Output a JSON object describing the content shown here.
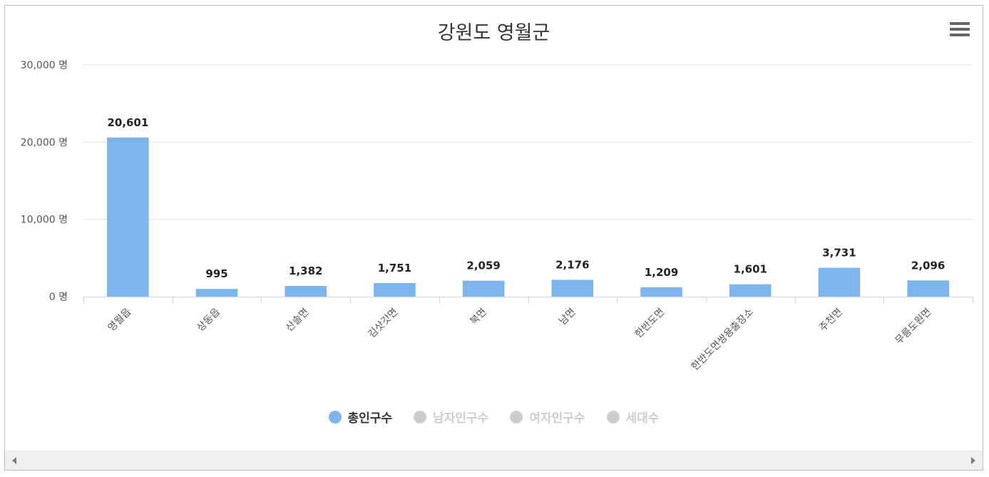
{
  "chart_data": {
    "type": "bar",
    "title": "강원도 영월군",
    "categories": [
      "영월읍",
      "상동읍",
      "산솔면",
      "김삿갓면",
      "북면",
      "남면",
      "한반도면",
      "한반도면쌍용출장소",
      "주천면",
      "무릉도원면"
    ],
    "series": [
      {
        "name": "총인구수",
        "values": [
          20601,
          995,
          1382,
          1751,
          2059,
          2176,
          1209,
          1601,
          3731,
          2096
        ],
        "color": "#7cb5ec",
        "visible": true
      }
    ],
    "value_labels": [
      "20,601",
      "995",
      "1,382",
      "1,751",
      "2,059",
      "2,176",
      "1,209",
      "1,601",
      "3,731",
      "2,096"
    ],
    "ylim": [
      0,
      30000
    ],
    "yticks": [
      {
        "value": 0,
        "label": "0 명"
      },
      {
        "value": 10000,
        "label": "10,000 명"
      },
      {
        "value": 20000,
        "label": "20,000 명"
      },
      {
        "value": 30000,
        "label": "30,000 명"
      }
    ],
    "grid": true,
    "legend_position": "bottom-center"
  },
  "legend": {
    "items": [
      {
        "label": "총인구수",
        "color": "#7cb5ec",
        "active": true
      },
      {
        "label": "남자인구수",
        "color": "#cccccc",
        "active": false
      },
      {
        "label": "여자인구수",
        "color": "#cccccc",
        "active": false
      },
      {
        "label": "세대수",
        "color": "#cccccc",
        "active": false
      }
    ]
  },
  "toolbar": {
    "menu_icon": "hamburger-menu-icon"
  },
  "scrollbar": {
    "left_icon": "scroll-left-arrow-icon",
    "right_icon": "scroll-right-arrow-icon"
  }
}
